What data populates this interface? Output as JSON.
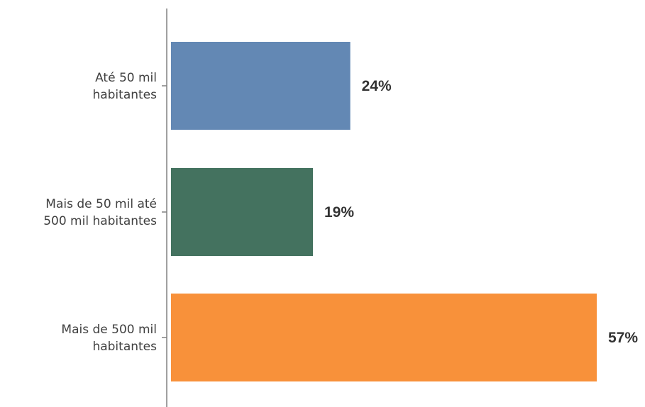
{
  "chart_data": {
    "type": "bar",
    "orientation": "horizontal",
    "title": "",
    "categories": [
      [
        "Até 50 mil",
        "habitantes"
      ],
      [
        "Mais de 50 mil até",
        "500 mil habitantes"
      ],
      [
        "Mais de 500 mil",
        "habitantes"
      ]
    ],
    "values": [
      24,
      19,
      57
    ],
    "value_labels": [
      "24%",
      "19%",
      "57%"
    ],
    "colors": [
      "#6388b4",
      "#44725f",
      "#f8913a"
    ],
    "xlim": [
      0,
      57
    ],
    "grid": false,
    "legend": "none"
  }
}
